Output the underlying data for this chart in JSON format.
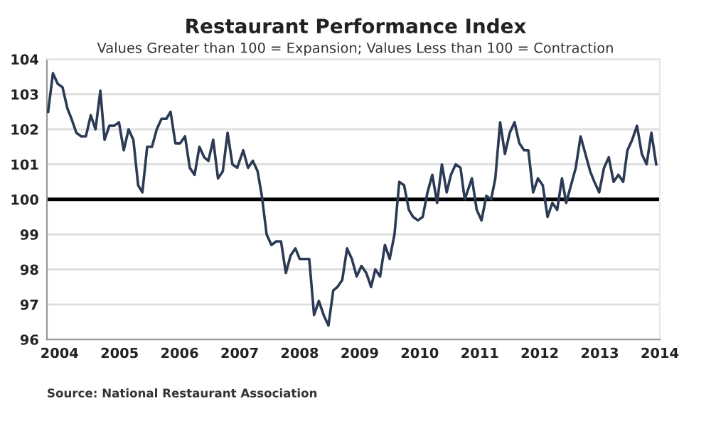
{
  "chart_data": {
    "type": "line",
    "title": "Restaurant Performance Index",
    "subtitle": "Values Greater than 100 = Expansion; Values Less than 100 = Contraction",
    "annotations": [
      "Source: National Restaurant Association"
    ],
    "x": [
      2003.81,
      2003.89,
      2003.97,
      2004.05,
      2004.13,
      2004.2,
      2004.28,
      2004.36,
      2004.44,
      2004.52,
      2004.6,
      2004.68,
      2004.75,
      2004.83,
      2004.91,
      2004.99,
      2005.07,
      2005.15,
      2005.23,
      2005.31,
      2005.38,
      2005.46,
      2005.54,
      2005.62,
      2005.7,
      2005.78,
      2005.85,
      2005.93,
      2006.01,
      2006.09,
      2006.17,
      2006.25,
      2006.33,
      2006.41,
      2006.48,
      2006.56,
      2006.64,
      2006.72,
      2006.8,
      2006.88,
      2006.96,
      2007.06,
      2007.14,
      2007.22,
      2007.3,
      2007.37,
      2007.45,
      2007.53,
      2007.61,
      2007.69,
      2007.77,
      2007.85,
      2007.93,
      2008.0,
      2008.08,
      2008.16,
      2008.24,
      2008.32,
      2008.4,
      2008.48,
      2008.56,
      2008.63,
      2008.71,
      2008.79,
      2008.87,
      2008.95,
      2009.03,
      2009.11,
      2009.19,
      2009.26,
      2009.34,
      2009.42,
      2009.5,
      2009.58,
      2009.66,
      2009.74,
      2009.82,
      2009.89,
      2009.97,
      2010.05,
      2010.13,
      2010.21,
      2010.29,
      2010.37,
      2010.45,
      2010.52,
      2010.6,
      2010.68,
      2010.75,
      2010.87,
      2010.95,
      2011.03,
      2011.11,
      2011.19,
      2011.26,
      2011.34,
      2011.42,
      2011.5,
      2011.58,
      2011.66,
      2011.74,
      2011.81,
      2011.89,
      2011.97,
      2012.05,
      2012.13,
      2012.21,
      2012.29,
      2012.37,
      2012.44,
      2012.52,
      2012.6,
      2012.68,
      2012.76,
      2012.84,
      2012.91,
      2012.99,
      2013.07,
      2013.15,
      2013.23,
      2013.31,
      2013.39,
      2013.46,
      2013.54,
      2013.62,
      2013.7,
      2013.78,
      2013.86,
      2013.94
    ],
    "series": [
      {
        "color": "#2b3a55",
        "values": [
          102.5,
          103.6,
          103.3,
          103.2,
          102.6,
          102.3,
          101.9,
          101.8,
          101.8,
          102.4,
          102.0,
          103.1,
          101.7,
          102.1,
          102.1,
          102.2,
          101.4,
          102.0,
          101.7,
          100.4,
          100.2,
          101.5,
          101.5,
          102.0,
          102.3,
          102.3,
          102.5,
          101.6,
          101.6,
          101.8,
          100.9,
          100.7,
          101.5,
          101.2,
          101.1,
          101.7,
          100.6,
          100.8,
          101.9,
          101.0,
          100.9,
          101.4,
          100.9,
          101.1,
          100.8,
          100.1,
          99.0,
          98.7,
          98.8,
          98.8,
          97.9,
          98.4,
          98.6,
          98.3,
          98.3,
          98.3,
          96.7,
          97.1,
          96.7,
          96.4,
          97.4,
          97.5,
          97.7,
          98.6,
          98.3,
          97.8,
          98.1,
          97.9,
          97.5,
          98.0,
          97.8,
          98.7,
          98.3,
          99.0,
          100.5,
          100.4,
          99.7,
          99.5,
          99.4,
          99.5,
          100.2,
          100.7,
          99.9,
          101.0,
          100.2,
          100.7,
          101.0,
          100.9,
          100.0,
          100.6,
          99.7,
          99.4,
          100.1,
          100.0,
          100.6,
          102.2,
          101.3,
          101.9,
          102.2,
          101.6,
          101.4,
          101.4,
          100.2,
          100.6,
          100.4,
          99.5,
          99.9,
          99.7,
          100.6,
          99.9,
          100.4,
          100.9,
          101.8,
          101.3,
          100.8,
          100.5,
          100.2,
          100.9,
          101.2,
          100.5,
          100.7,
          100.5,
          101.4,
          101.7,
          102.1,
          101.3,
          101.0,
          101.9,
          101.0
        ]
      }
    ],
    "xlim": [
      2003.79,
      2014.0
    ],
    "xticks": [
      2004,
      2005,
      2006,
      2007,
      2008,
      2009,
      2010,
      2011,
      2012,
      2013,
      2014
    ],
    "ylim": [
      96,
      104
    ],
    "yticks": [
      96,
      97,
      98,
      99,
      100,
      101,
      102,
      103,
      104
    ],
    "ref_lines": [
      {
        "axis": "y",
        "value": 100,
        "color": "#000000"
      }
    ],
    "grid": "y",
    "legend": false,
    "marker": "none",
    "line_style": "solid"
  }
}
